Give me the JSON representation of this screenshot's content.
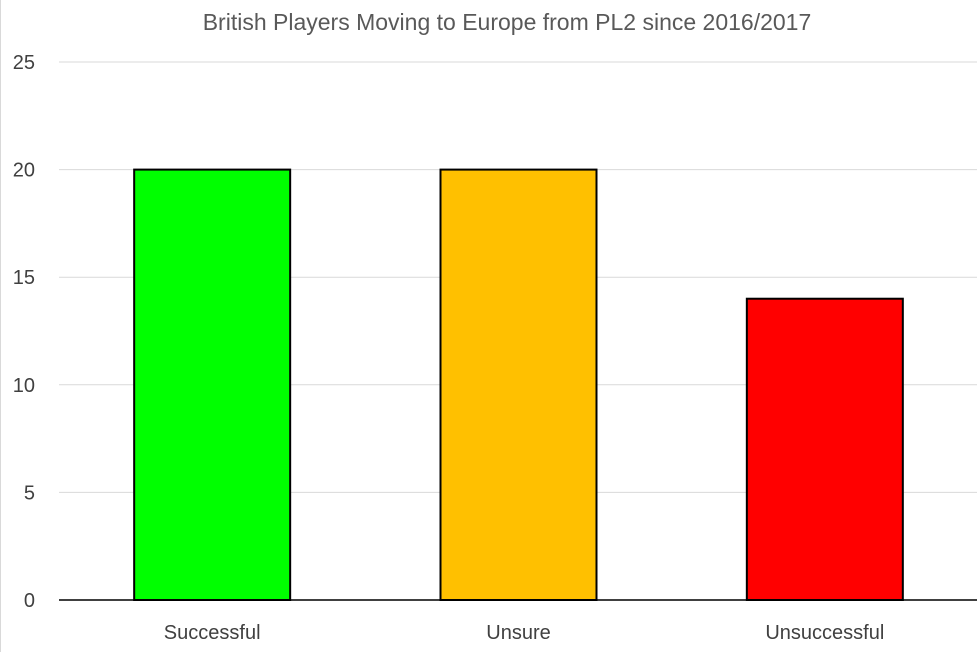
{
  "chart_data": {
    "type": "bar",
    "title": "British Players Moving to Europe from PL2 since 2016/2017",
    "xlabel": "",
    "ylabel": "",
    "categories": [
      "Successful",
      "Unsure",
      "Unsuccessful"
    ],
    "values": [
      20,
      20,
      14
    ],
    "bar_colors": [
      "#00ff00",
      "#ffc000",
      "#ff0000"
    ],
    "ylim": [
      0,
      25
    ],
    "yticks": [
      0,
      5,
      10,
      15,
      20,
      25
    ],
    "grid": true,
    "legend": "none"
  }
}
